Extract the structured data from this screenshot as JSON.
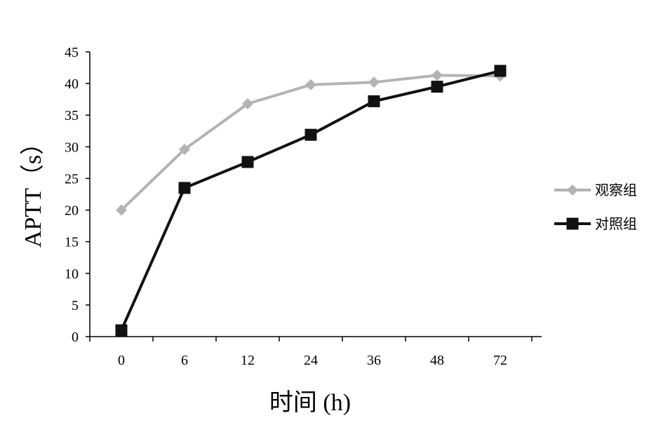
{
  "chart_data": {
    "type": "line",
    "categories": [
      "0",
      "6",
      "12",
      "24",
      "36",
      "48",
      "72"
    ],
    "xlabel": "时间 (h)",
    "ylabel": "APTT（s）",
    "ylim": [
      0,
      45
    ],
    "yticks": [
      0,
      5,
      10,
      15,
      20,
      25,
      30,
      35,
      40,
      45
    ],
    "grid": false,
    "legend_position": "right",
    "series": [
      {
        "name": "观察组",
        "values": [
          20.0,
          29.6,
          36.8,
          39.8,
          40.2,
          41.3,
          41.2
        ],
        "color": "#b3b3b3",
        "marker": "diamond"
      },
      {
        "name": "对照组",
        "values": [
          1.0,
          23.5,
          27.6,
          31.9,
          37.2,
          39.5,
          42.0
        ],
        "color": "#111111",
        "marker": "square"
      }
    ]
  }
}
